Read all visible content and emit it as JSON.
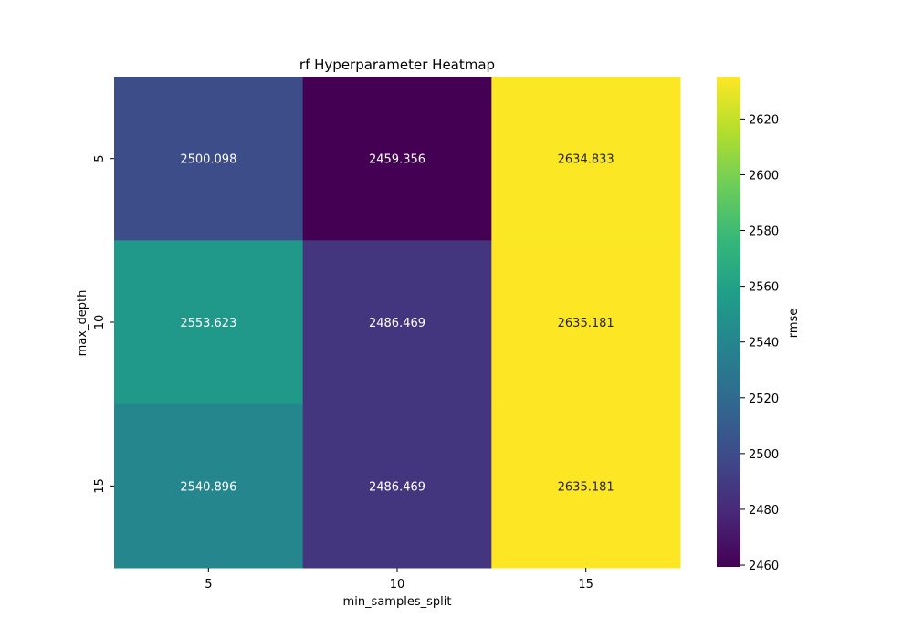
{
  "chart_data": {
    "type": "heatmap",
    "title": "rf Hyperparameter Heatmap",
    "xlabel": "min_samples_split",
    "ylabel": "max_depth",
    "x_categories": [
      "5",
      "10",
      "15"
    ],
    "y_categories": [
      "5",
      "10",
      "15"
    ],
    "values": [
      [
        2500.098,
        2459.356,
        2634.833
      ],
      [
        2553.623,
        2486.469,
        2635.181
      ],
      [
        2540.896,
        2486.469,
        2635.181
      ]
    ],
    "value_labels": [
      [
        "2500.098",
        "2459.356",
        "2634.833"
      ],
      [
        "2553.623",
        "2486.469",
        "2635.181"
      ],
      [
        "2540.896",
        "2486.469",
        "2635.181"
      ]
    ],
    "colorbar": {
      "label": "rmse",
      "colormap": "viridis",
      "vmin": 2459.356,
      "vmax": 2635.181,
      "ticks": [
        2460,
        2480,
        2500,
        2520,
        2540,
        2560,
        2580,
        2600,
        2620
      ]
    }
  }
}
